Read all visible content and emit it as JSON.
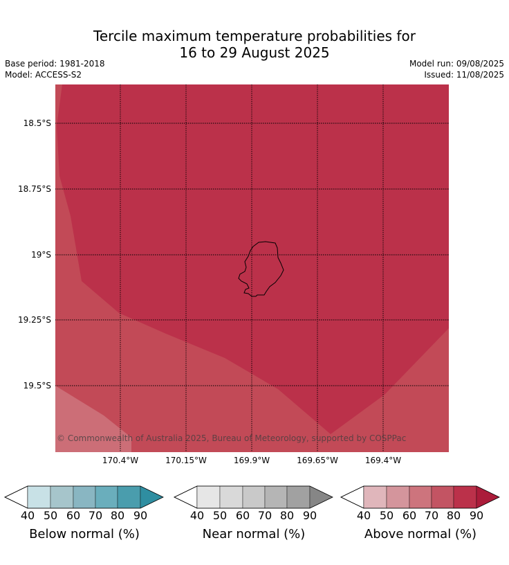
{
  "title": {
    "line1": "Tercile maximum temperature probabilities for",
    "line2": "16 to 29 August 2025"
  },
  "meta": {
    "base_period": "Base period: 1981-2018",
    "model": "Model: ACCESS-S2",
    "model_run": "Model run: 09/08/2025",
    "issued": "Issued: 11/08/2025"
  },
  "map": {
    "lat_labels": [
      "18.5°S",
      "18.75°S",
      "19°S",
      "19.25°S",
      "19.5°S"
    ],
    "lon_labels": [
      "170.4°W",
      "170.15°W",
      "169.9°W",
      "169.65°W",
      "169.4°W"
    ],
    "copyright": "© Commonwealth of Australia 2025, Bureau of Meteorology, supported by COSPPac",
    "colors": {
      "above_80_90": "#bb314a",
      "above_70_80": "#c24a57",
      "above_60_70": "#cc6e77",
      "coast": "#000000"
    }
  },
  "legends": [
    {
      "title": "Below normal (%)",
      "ticks": [
        "40",
        "50",
        "60",
        "70",
        "80",
        "90"
      ],
      "colors": [
        "#c8e1e6",
        "#a6c5cb",
        "#89b6c2",
        "#6aaebc",
        "#4a9dad",
        "#2f8ea1"
      ]
    },
    {
      "title": "Near normal (%)",
      "ticks": [
        "40",
        "50",
        "60",
        "70",
        "80",
        "90"
      ],
      "colors": [
        "#e6e6e6",
        "#d9d9d9",
        "#c9c9c9",
        "#b5b5b5",
        "#a1a1a1",
        "#868686"
      ]
    },
    {
      "title": "Above normal (%)",
      "ticks": [
        "40",
        "50",
        "60",
        "70",
        "80",
        "90"
      ],
      "colors": [
        "#e0b6bb",
        "#d4959c",
        "#cd747d",
        "#c35463",
        "#bb314a",
        "#ab1c3a"
      ]
    }
  ]
}
